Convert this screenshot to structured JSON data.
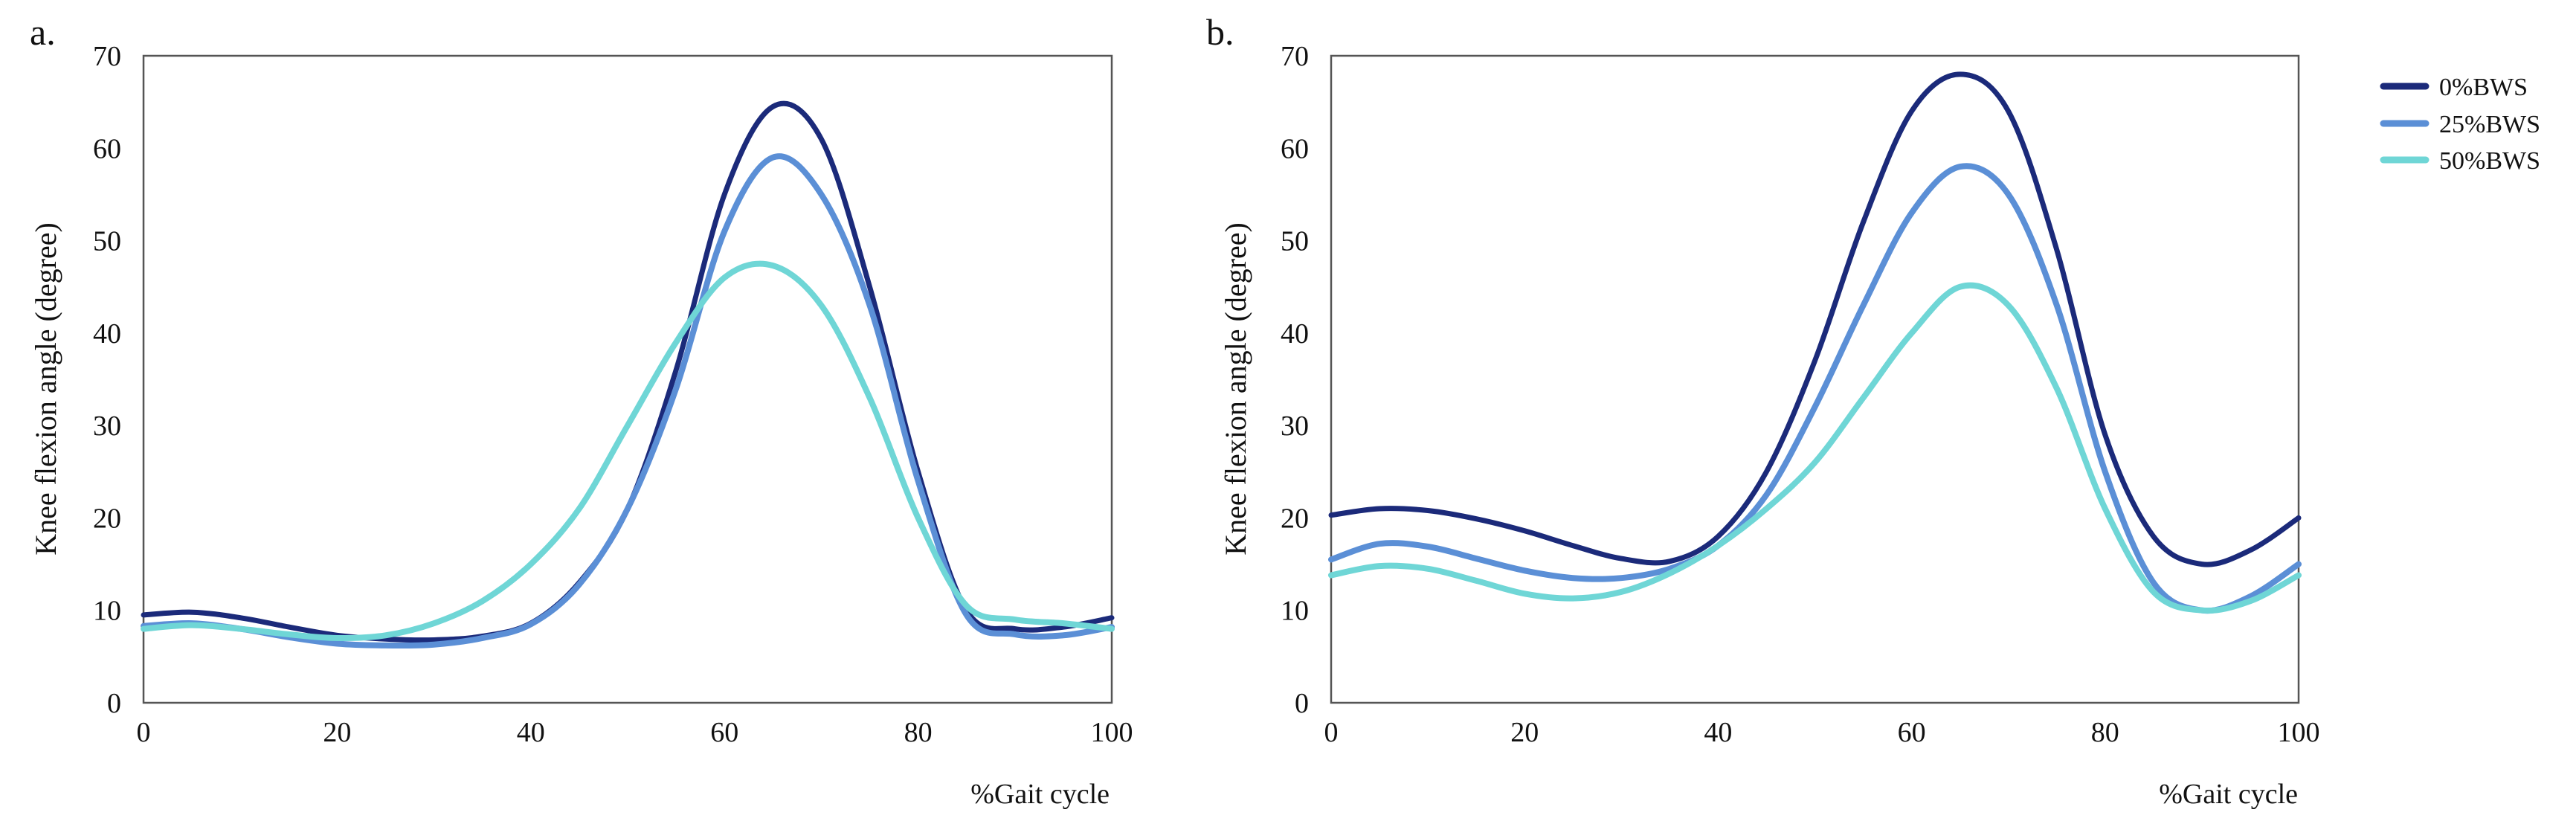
{
  "colors": {
    "s0": "#1b2a7a",
    "s25": "#5b8fd6",
    "s50": "#6fd6d6",
    "frame": "#555555"
  },
  "legend": [
    "0%BWS",
    "25%BWS",
    "50%BWS"
  ],
  "chart_data": [
    {
      "type": "line",
      "panel_label": "a.",
      "ylabel": "Knee flexion angle (degree)",
      "xlabel": "%Gait cycle",
      "xlim": [
        0,
        100
      ],
      "ylim": [
        0,
        70
      ],
      "xticks": [
        "0",
        "20",
        "40",
        "60",
        "80",
        "100"
      ],
      "yticks": [
        "0",
        "10",
        "20",
        "30",
        "40",
        "50",
        "60",
        "70"
      ],
      "grid": false,
      "legend_position": "outside-right",
      "x": [
        0,
        5,
        10,
        15,
        20,
        25,
        30,
        35,
        40,
        45,
        50,
        55,
        60,
        65,
        70,
        75,
        80,
        85,
        90,
        95,
        100
      ],
      "series": [
        {
          "name": "0%BWS",
          "values": [
            9.5,
            9.8,
            9.2,
            8.2,
            7.3,
            6.9,
            6.8,
            7.2,
            8.6,
            13,
            21,
            36,
            55,
            64.5,
            61,
            45,
            25,
            10,
            8,
            8.2,
            9.2
          ]
        },
        {
          "name": "25%BWS",
          "values": [
            8.3,
            8.6,
            8,
            7.1,
            6.4,
            6.2,
            6.3,
            7,
            8.5,
            12.8,
            21,
            34,
            51,
            59,
            55,
            43,
            24,
            9.5,
            7.4,
            7.3,
            8.2
          ]
        },
        {
          "name": "50%BWS",
          "values": [
            8,
            8.4,
            8,
            7.4,
            7,
            7.3,
            8.6,
            11,
            15,
            21,
            30,
            39,
            46,
            47.3,
            43,
            33,
            20,
            10.5,
            9,
            8.6,
            8
          ]
        }
      ]
    },
    {
      "type": "line",
      "panel_label": "b.",
      "ylabel": "Knee flexion angle (degree)",
      "xlabel": "%Gait cycle",
      "xlim": [
        0,
        100
      ],
      "ylim": [
        0,
        70
      ],
      "xticks": [
        "0",
        "20",
        "40",
        "60",
        "80",
        "100"
      ],
      "yticks": [
        "0",
        "10",
        "20",
        "30",
        "40",
        "50",
        "60",
        "70"
      ],
      "grid": false,
      "legend_position": "outside-right",
      "x": [
        0,
        5,
        10,
        15,
        20,
        25,
        30,
        35,
        40,
        45,
        50,
        55,
        60,
        65,
        70,
        75,
        80,
        85,
        90,
        95,
        100
      ],
      "series": [
        {
          "name": "0%BWS",
          "values": [
            20.3,
            21,
            20.8,
            19.9,
            18.6,
            17,
            15.6,
            15.3,
            18,
            25,
            37,
            52,
            64,
            68,
            64,
            49,
            29,
            18,
            15,
            16.5,
            20
          ]
        },
        {
          "name": "25%BWS",
          "values": [
            15.5,
            17.2,
            16.9,
            15.6,
            14.3,
            13.5,
            13.5,
            14.5,
            17,
            22.5,
            32,
            43,
            53,
            58,
            55,
            43,
            25,
            13,
            10,
            11.5,
            15
          ]
        },
        {
          "name": "50%BWS",
          "values": [
            13.8,
            14.8,
            14.5,
            13.2,
            11.8,
            11.3,
            12,
            14,
            17,
            21,
            26,
            33,
            40,
            45,
            43,
            34,
            21,
            12,
            10,
            11,
            13.8
          ]
        }
      ]
    }
  ]
}
